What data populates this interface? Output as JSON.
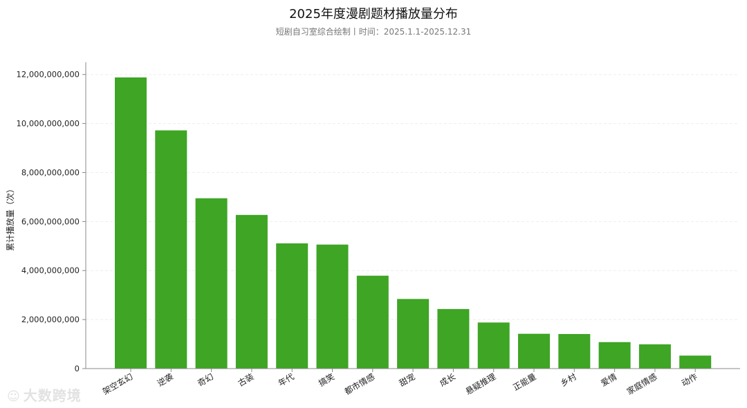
{
  "title": "2025年度漫剧题材播放量分布",
  "subtitle": "短剧自习室综合绘制丨时间：2025.1.1-2025.12.31",
  "watermark": "大数跨境",
  "colors": {
    "bar": "#3ea525",
    "axis": "#888888",
    "grid": "#eeeeee",
    "text": "#222222"
  },
  "chart_data": {
    "type": "bar",
    "categories": [
      "架空玄幻",
      "逆袭",
      "奇幻",
      "古装",
      "年代",
      "搞笑",
      "都市情感",
      "甜宠",
      "成长",
      "悬疑推理",
      "正能量",
      "乡村",
      "爱情",
      "家庭情感",
      "动作"
    ],
    "values": [
      11880000000,
      9720000000,
      6950000000,
      6270000000,
      5110000000,
      5060000000,
      3790000000,
      2840000000,
      2430000000,
      1880000000,
      1420000000,
      1410000000,
      1080000000,
      990000000,
      530000000
    ],
    "ylabel": "累计播放量（次）",
    "xlabel": "",
    "ylim": [
      0,
      12500000000
    ],
    "yticks": [
      0,
      2000000000,
      4000000000,
      6000000000,
      8000000000,
      10000000000,
      12000000000
    ],
    "ytick_labels": [
      "0",
      "2,000,000,000",
      "4,000,000,000",
      "6,000,000,000",
      "8,000,000,000",
      "10,000,000,000",
      "12,000,000,000"
    ],
    "grid": true,
    "legend": "none"
  }
}
